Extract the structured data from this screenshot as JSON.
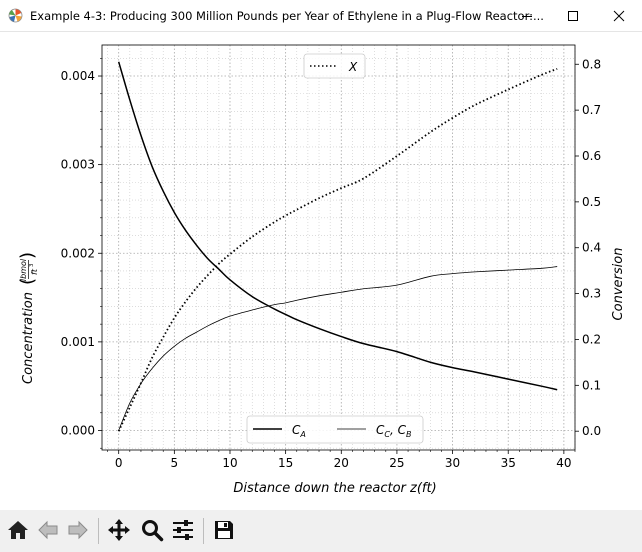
{
  "window": {
    "title": "Example 4-3: Producing 300 Million Pounds per Year of Ethylene in a Plug-Flow Reactor:..."
  },
  "toolbar": {
    "buttons": [
      {
        "name": "home-button",
        "icon": "home-icon"
      },
      {
        "name": "back-button",
        "icon": "arrow-left-icon"
      },
      {
        "name": "forward-button",
        "icon": "arrow-right-icon"
      },
      {
        "name": "pan-button",
        "icon": "move-icon"
      },
      {
        "name": "zoom-button",
        "icon": "magnifier-icon"
      },
      {
        "name": "configure-subplots-button",
        "icon": "sliders-icon"
      },
      {
        "name": "save-button",
        "icon": "floppy-disk-icon"
      }
    ]
  },
  "chart_data": {
    "type": "line",
    "xlabel": "Distance down the reactor z(ft)",
    "ylabel_left": "Concentration",
    "ylabel_left_unit_num": "lbmol",
    "ylabel_left_unit_den": "ft",
    "ylabel_left_unit_exp": "3",
    "ylabel_right": "Conversion",
    "xlim": [
      -1.5,
      41.0
    ],
    "ylim_left": [
      -0.00022,
      0.00435
    ],
    "ylim_right": [
      -0.041,
      0.842
    ],
    "x_ticks": [
      0,
      5,
      10,
      15,
      20,
      25,
      30,
      35,
      40
    ],
    "x_tick_labels": [
      "0",
      "5",
      "10",
      "15",
      "20",
      "25",
      "30",
      "35",
      "40"
    ],
    "y_left_ticks": [
      0,
      0.001,
      0.002,
      0.003,
      0.004
    ],
    "y_left_tick_labels": [
      "0.000",
      "0.001",
      "0.002",
      "0.003",
      "0.004"
    ],
    "y_right_ticks": [
      0,
      0.1,
      0.2,
      0.3,
      0.4,
      0.5,
      0.6,
      0.7,
      0.8
    ],
    "y_right_tick_labels": [
      "0.0",
      "0.1",
      "0.2",
      "0.3",
      "0.4",
      "0.5",
      "0.6",
      "0.7",
      "0.8"
    ],
    "grid": true,
    "minor_grid": true,
    "legend_top": {
      "placement": "top-center",
      "entries": [
        {
          "label": "X",
          "style": "dotted"
        }
      ]
    },
    "legend_bottom": {
      "placement": "bottom-center",
      "entries": [
        {
          "label_main": "C",
          "label_sub": "A",
          "style": "solid-thick"
        },
        {
          "label_main": "C",
          "label_sub": "C",
          "label_sep": ", ",
          "label_main2": "C",
          "label_sub2": "B",
          "style": "solid-thin"
        }
      ]
    },
    "series": [
      {
        "name": "CA",
        "axis": "left",
        "style": "solid-thick",
        "x": [
          0,
          1,
          2,
          3,
          4,
          5,
          6,
          7,
          8,
          9,
          10,
          12,
          14,
          15,
          16,
          18,
          20,
          22,
          25,
          28,
          30,
          32,
          35,
          38,
          39.4
        ],
        "y": [
          0.00416,
          0.00373,
          0.00333,
          0.00298,
          0.0027,
          0.00246,
          0.00226,
          0.00209,
          0.00194,
          0.00182,
          0.0017,
          0.00151,
          0.00137,
          0.00131,
          0.00125,
          0.00115,
          0.00106,
          0.00098,
          0.00089,
          0.00077,
          0.00071,
          0.00066,
          0.00058,
          0.0005,
          0.00046
        ]
      },
      {
        "name": "CC, CB",
        "axis": "left",
        "style": "solid-thin",
        "x": [
          0,
          1,
          2,
          3,
          4,
          5,
          6,
          7,
          8,
          9,
          10,
          12,
          14,
          15,
          16,
          18,
          20,
          22,
          25,
          28,
          30,
          32,
          35,
          38,
          39.4
        ],
        "y": [
          0.0,
          0.00031,
          0.00053,
          0.0007,
          0.00084,
          0.00095,
          0.00104,
          0.00111,
          0.00118,
          0.00124,
          0.00129,
          0.00136,
          0.00142,
          0.00144,
          0.00147,
          0.00152,
          0.00156,
          0.0016,
          0.00164,
          0.00174,
          0.00177,
          0.00179,
          0.00181,
          0.00183,
          0.00185
        ]
      },
      {
        "name": "X",
        "axis": "right",
        "style": "dotted",
        "x": [
          0,
          1,
          2,
          3,
          4,
          5,
          6,
          7,
          8,
          9,
          10,
          12,
          14,
          15,
          16,
          18,
          20,
          22,
          25,
          28,
          30,
          32,
          35,
          38,
          39.4
        ],
        "y": [
          0.0,
          0.052,
          0.105,
          0.16,
          0.205,
          0.247,
          0.282,
          0.313,
          0.34,
          0.365,
          0.386,
          0.424,
          0.456,
          0.47,
          0.483,
          0.508,
          0.53,
          0.551,
          0.6,
          0.652,
          0.683,
          0.711,
          0.745,
          0.777,
          0.79
        ]
      }
    ]
  }
}
